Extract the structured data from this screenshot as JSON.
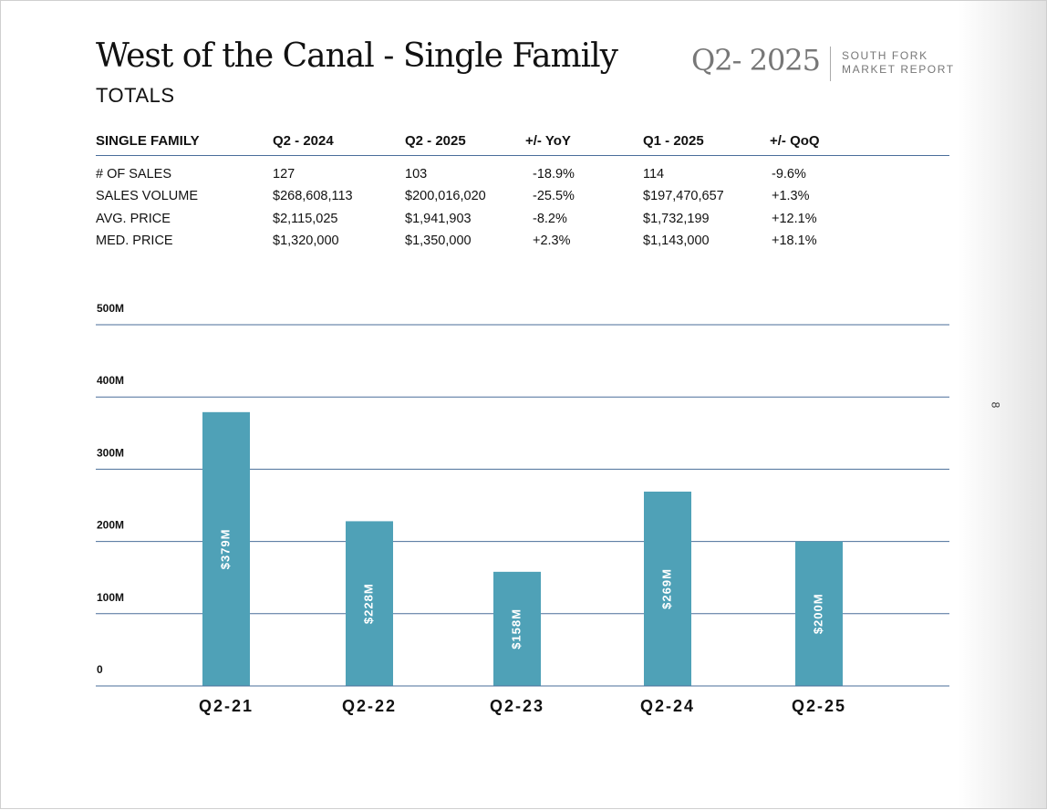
{
  "header": {
    "title": "West of the Canal - Single Family",
    "subtitle": "TOTALS",
    "quarter": "Q2- 2025",
    "brand_line1": "SOUTH FORK",
    "brand_line2": "MARKET REPORT"
  },
  "page_number": "8",
  "table": {
    "columns": [
      "SINGLE FAMILY",
      "Q2 - 2024",
      "Q2 - 2025",
      "+/- YoY",
      "Q1 - 2025",
      "+/- QoQ"
    ],
    "rows": [
      [
        "# OF SALES",
        "127",
        "103",
        "-18.9%",
        "114",
        "-9.6%"
      ],
      [
        "SALES VOLUME",
        "$268,608,113",
        "$200,016,020",
        "-25.5%",
        "$197,470,657",
        "+1.3%"
      ],
      [
        "AVG. PRICE",
        "$2,115,025",
        "$1,941,903",
        "-8.2%",
        "$1,732,199",
        "+12.1%"
      ],
      [
        "MED. PRICE",
        "$1,320,000",
        "$1,350,000",
        "+2.3%",
        "$1,143,000",
        "+18.1%"
      ]
    ]
  },
  "colors": {
    "bar": "#4fa1b7",
    "gridline": "#4a6e9a"
  },
  "chart_data": {
    "type": "bar",
    "title": "",
    "xlabel": "",
    "ylabel": "",
    "categories": [
      "Q2-21",
      "Q2-22",
      "Q2-23",
      "Q2-24",
      "Q2-25"
    ],
    "values": [
      379,
      228,
      158,
      269,
      200
    ],
    "data_labels": [
      "$379M",
      "$228M",
      "$158M",
      "$269M",
      "$200M"
    ],
    "unit": "M",
    "ylim": [
      0,
      500
    ],
    "yticks": [
      0,
      100,
      200,
      300,
      400,
      500
    ],
    "ytick_labels": [
      "0",
      "100M",
      "200M",
      "300M",
      "400M",
      "500M"
    ],
    "grid": true
  }
}
